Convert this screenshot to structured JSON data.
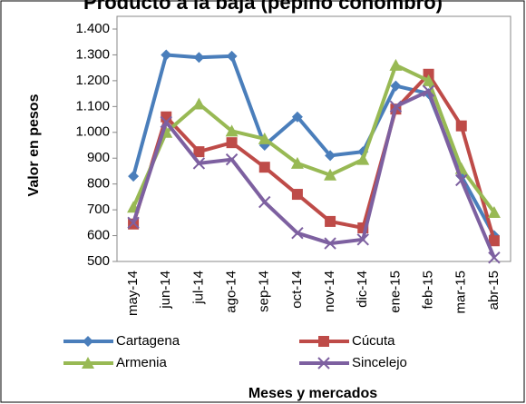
{
  "chart_data": {
    "type": "line",
    "title": "Producto a la baja (pepino cohombro)",
    "y_label": "Valor en pesos",
    "x_label": "Meses  y mercados",
    "categories": [
      "may-14",
      "jun-14",
      "jul-14",
      "ago-14",
      "sep-14",
      "oct-14",
      "nov-14",
      "dic-14",
      "ene-15",
      "feb-15",
      "mar-15",
      "abr-15"
    ],
    "series": [
      {
        "name": "Cartagena",
        "color": "#4a7ebb",
        "marker": "diamond",
        "values": [
          830,
          1300,
          1290,
          1295,
          950,
          1060,
          910,
          925,
          1180,
          1150,
          830,
          600
        ]
      },
      {
        "name": "Cúcuta",
        "color": "#be4b48",
        "marker": "square",
        "values": [
          645,
          1060,
          925,
          960,
          865,
          760,
          655,
          630,
          1090,
          1225,
          1025,
          580
        ]
      },
      {
        "name": "Armenia",
        "color": "#98b954",
        "marker": "triangle",
        "values": [
          710,
          1000,
          1110,
          1005,
          975,
          880,
          835,
          895,
          1260,
          1200,
          860,
          690
        ]
      },
      {
        "name": "Sincelejo",
        "color": "#7d60a0",
        "marker": "x",
        "values": [
          650,
          1040,
          880,
          895,
          730,
          610,
          570,
          585,
          1100,
          1160,
          815,
          515
        ]
      }
    ],
    "ylim": [
      500,
      1400
    ],
    "yticks": [
      500,
      600,
      700,
      800,
      900,
      {
        "value": 1000,
        "label": "1.000"
      },
      {
        "value": 1100,
        "label": "1.100"
      },
      {
        "value": 1200,
        "label": "1.200"
      },
      {
        "value": 1300,
        "label": "1.300"
      },
      {
        "value": 1400,
        "label": "1.400"
      }
    ],
    "grid": false,
    "legend": "bottom"
  }
}
